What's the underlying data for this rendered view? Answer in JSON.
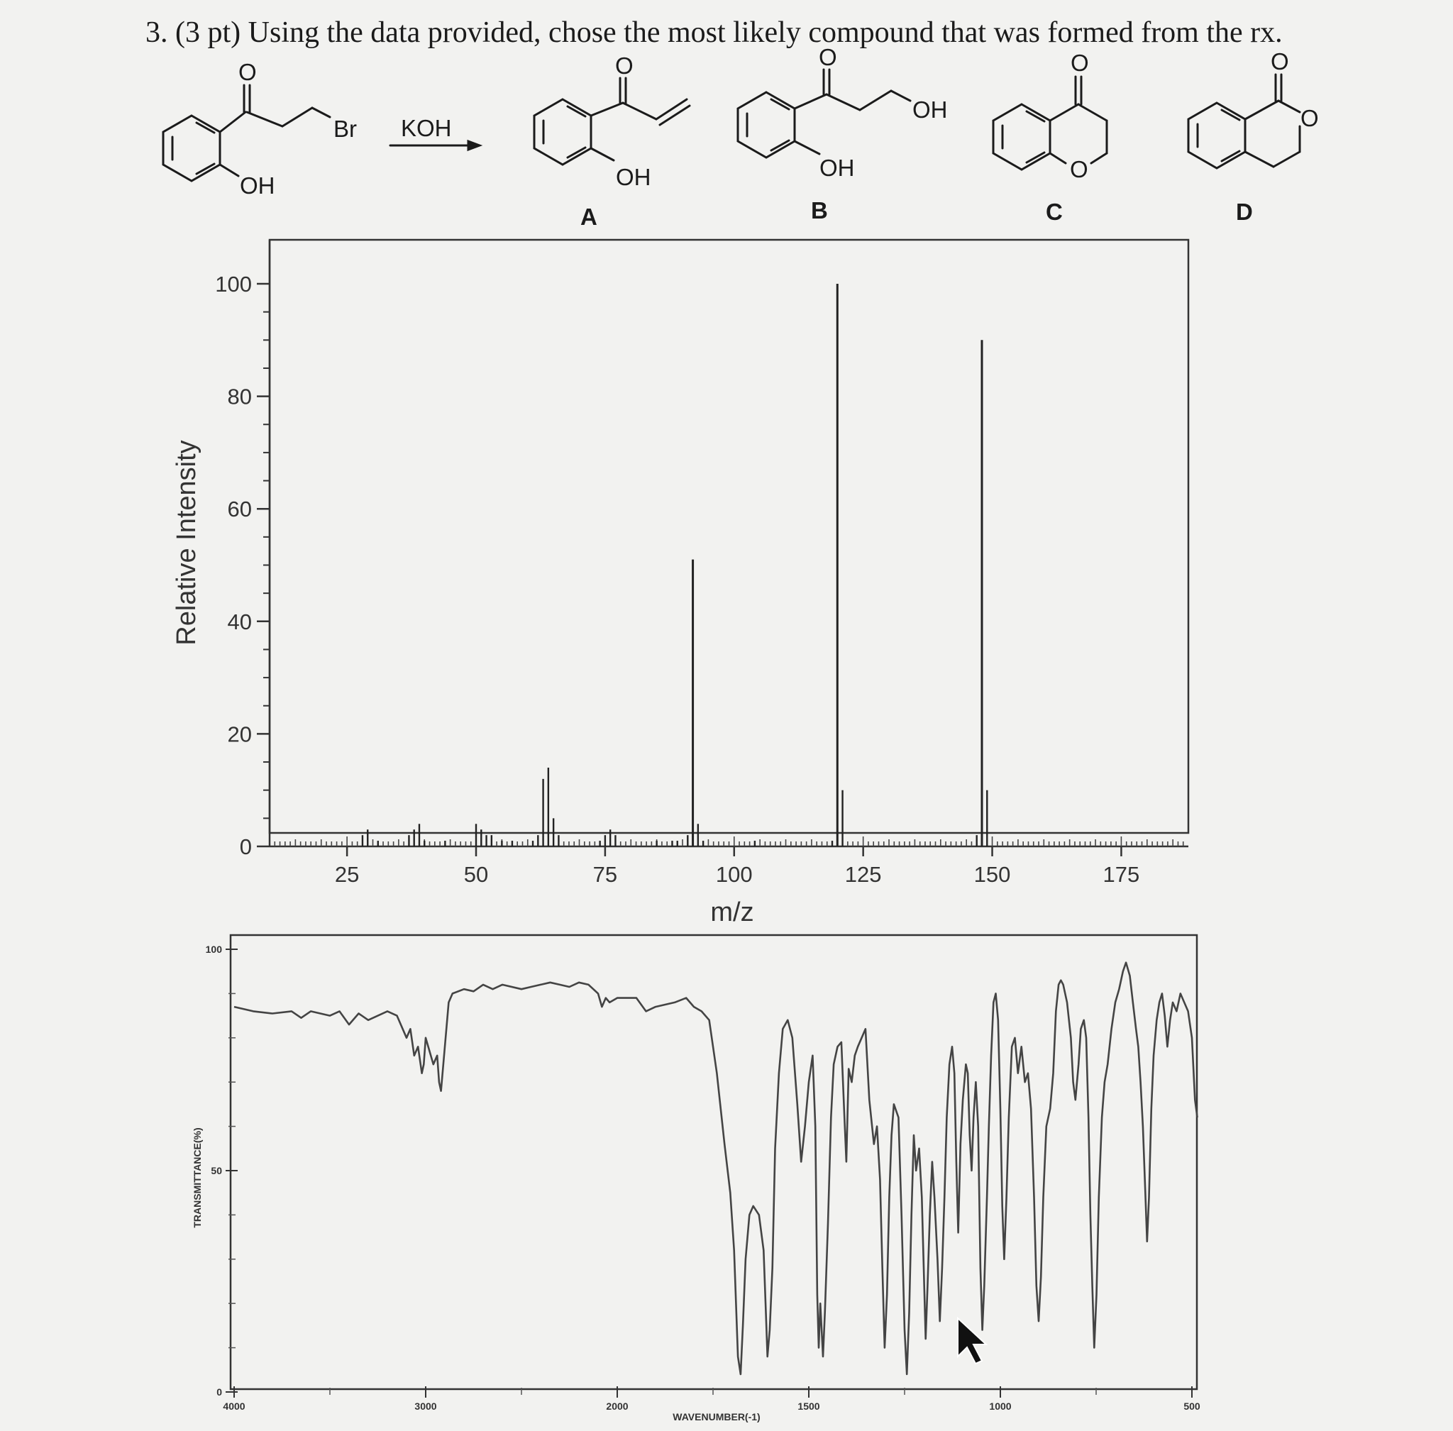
{
  "question": "3. (3 pt) Using the data provided, chose the most likely compound that was formed from the rx.",
  "reaction": {
    "reactant_labels": {
      "carbonyl_o": "O",
      "bromine": "Br",
      "hydroxyl": "OH"
    },
    "reagent": "KOH",
    "choices": [
      {
        "letter": "A",
        "atoms": [
          "O",
          "OH"
        ]
      },
      {
        "letter": "B",
        "atoms": [
          "O",
          "OH",
          "OH"
        ]
      },
      {
        "letter": "C",
        "atoms": [
          "O",
          "O"
        ]
      },
      {
        "letter": "D",
        "atoms": [
          "O",
          "O"
        ]
      }
    ]
  },
  "chart_data": [
    {
      "type": "bar",
      "chart_kind": "mass-spectrum",
      "xlabel": "m/z",
      "ylabel": "Relative Intensity",
      "x_ticks": [
        "25",
        "50",
        "75",
        "100",
        "125",
        "150",
        "175"
      ],
      "y_ticks": [
        "0",
        "20",
        "40",
        "60",
        "80",
        "100"
      ],
      "xlim": [
        10,
        188
      ],
      "ylim": [
        0,
        100
      ],
      "peaks": [
        {
          "mz": 28,
          "intensity": 2
        },
        {
          "mz": 29,
          "intensity": 3
        },
        {
          "mz": 31,
          "intensity": 1
        },
        {
          "mz": 37,
          "intensity": 2
        },
        {
          "mz": 38,
          "intensity": 3
        },
        {
          "mz": 39,
          "intensity": 4
        },
        {
          "mz": 40,
          "intensity": 1
        },
        {
          "mz": 44,
          "intensity": 1
        },
        {
          "mz": 50,
          "intensity": 4
        },
        {
          "mz": 51,
          "intensity": 3
        },
        {
          "mz": 52,
          "intensity": 2
        },
        {
          "mz": 53,
          "intensity": 2
        },
        {
          "mz": 55,
          "intensity": 1
        },
        {
          "mz": 57,
          "intensity": 1
        },
        {
          "mz": 61,
          "intensity": 1
        },
        {
          "mz": 62,
          "intensity": 2
        },
        {
          "mz": 63,
          "intensity": 12
        },
        {
          "mz": 64,
          "intensity": 14
        },
        {
          "mz": 65,
          "intensity": 5
        },
        {
          "mz": 66,
          "intensity": 2
        },
        {
          "mz": 74,
          "intensity": 1
        },
        {
          "mz": 75,
          "intensity": 2
        },
        {
          "mz": 76,
          "intensity": 3
        },
        {
          "mz": 77,
          "intensity": 2
        },
        {
          "mz": 85,
          "intensity": 1
        },
        {
          "mz": 88,
          "intensity": 1
        },
        {
          "mz": 89,
          "intensity": 1
        },
        {
          "mz": 91,
          "intensity": 2
        },
        {
          "mz": 92,
          "intensity": 51
        },
        {
          "mz": 93,
          "intensity": 4
        },
        {
          "mz": 94,
          "intensity": 1
        },
        {
          "mz": 104,
          "intensity": 1
        },
        {
          "mz": 119,
          "intensity": 1
        },
        {
          "mz": 120,
          "intensity": 100
        },
        {
          "mz": 121,
          "intensity": 10
        },
        {
          "mz": 147,
          "intensity": 2
        },
        {
          "mz": 148,
          "intensity": 90
        },
        {
          "mz": 149,
          "intensity": 10
        }
      ]
    },
    {
      "type": "line",
      "chart_kind": "ir-spectrum",
      "ylabel": "TRANSMITTANCE(%)",
      "xlabel": "WAVENUMBER(-1)",
      "x_ticks": [
        "4000",
        "3000",
        "2000",
        "1500",
        "1000",
        "500"
      ],
      "y_ticks": [
        "0",
        "50",
        "100"
      ],
      "ylim": [
        0,
        100
      ],
      "points": [
        [
          4000,
          87
        ],
        [
          3900,
          86
        ],
        [
          3800,
          85.5
        ],
        [
          3700,
          86
        ],
        [
          3650,
          84.5
        ],
        [
          3600,
          86
        ],
        [
          3500,
          85
        ],
        [
          3450,
          86
        ],
        [
          3400,
          83
        ],
        [
          3350,
          85.5
        ],
        [
          3300,
          84
        ],
        [
          3200,
          86
        ],
        [
          3150,
          85
        ],
        [
          3100,
          80
        ],
        [
          3080,
          82
        ],
        [
          3060,
          76
        ],
        [
          3040,
          78
        ],
        [
          3020,
          72
        ],
        [
          3010,
          74
        ],
        [
          3000,
          80
        ],
        [
          2980,
          77
        ],
        [
          2960,
          74
        ],
        [
          2940,
          76
        ],
        [
          2930,
          70
        ],
        [
          2920,
          68
        ],
        [
          2900,
          78
        ],
        [
          2880,
          88
        ],
        [
          2860,
          90
        ],
        [
          2800,
          91
        ],
        [
          2750,
          90.5
        ],
        [
          2700,
          92
        ],
        [
          2650,
          91
        ],
        [
          2600,
          92
        ],
        [
          2500,
          91
        ],
        [
          2450,
          91.5
        ],
        [
          2400,
          92
        ],
        [
          2350,
          92.5
        ],
        [
          2300,
          92
        ],
        [
          2250,
          91.5
        ],
        [
          2200,
          92.5
        ],
        [
          2150,
          92
        ],
        [
          2100,
          90
        ],
        [
          2080,
          87
        ],
        [
          2060,
          89
        ],
        [
          2040,
          88
        ],
        [
          2000,
          89
        ],
        [
          1950,
          89
        ],
        [
          1925,
          86
        ],
        [
          1900,
          87
        ],
        [
          1850,
          88
        ],
        [
          1820,
          89
        ],
        [
          1800,
          87
        ],
        [
          1780,
          86
        ],
        [
          1760,
          84
        ],
        [
          1740,
          72
        ],
        [
          1720,
          56
        ],
        [
          1705,
          45
        ],
        [
          1695,
          32
        ],
        [
          1690,
          20
        ],
        [
          1685,
          8
        ],
        [
          1678,
          4
        ],
        [
          1672,
          15
        ],
        [
          1665,
          30
        ],
        [
          1655,
          40
        ],
        [
          1645,
          42
        ],
        [
          1630,
          40
        ],
        [
          1618,
          32
        ],
        [
          1612,
          18
        ],
        [
          1608,
          8
        ],
        [
          1602,
          14
        ],
        [
          1595,
          28
        ],
        [
          1588,
          55
        ],
        [
          1578,
          72
        ],
        [
          1568,
          82
        ],
        [
          1555,
          84
        ],
        [
          1543,
          80
        ],
        [
          1530,
          65
        ],
        [
          1520,
          52
        ],
        [
          1510,
          60
        ],
        [
          1500,
          70
        ],
        [
          1490,
          76
        ],
        [
          1483,
          60
        ],
        [
          1478,
          22
        ],
        [
          1474,
          10
        ],
        [
          1470,
          20
        ],
        [
          1463,
          8
        ],
        [
          1458,
          18
        ],
        [
          1450,
          38
        ],
        [
          1442,
          62
        ],
        [
          1435,
          74
        ],
        [
          1425,
          78
        ],
        [
          1415,
          79
        ],
        [
          1408,
          64
        ],
        [
          1402,
          52
        ],
        [
          1396,
          73
        ],
        [
          1388,
          70
        ],
        [
          1380,
          76
        ],
        [
          1372,
          78
        ],
        [
          1362,
          80
        ],
        [
          1352,
          82
        ],
        [
          1342,
          66
        ],
        [
          1330,
          56
        ],
        [
          1322,
          60
        ],
        [
          1314,
          48
        ],
        [
          1308,
          28
        ],
        [
          1302,
          10
        ],
        [
          1296,
          22
        ],
        [
          1290,
          44
        ],
        [
          1284,
          58
        ],
        [
          1278,
          65
        ],
        [
          1266,
          62
        ],
        [
          1258,
          40
        ],
        [
          1250,
          14
        ],
        [
          1244,
          4
        ],
        [
          1238,
          18
        ],
        [
          1232,
          40
        ],
        [
          1226,
          58
        ],
        [
          1220,
          50
        ],
        [
          1212,
          55
        ],
        [
          1205,
          44
        ],
        [
          1200,
          28
        ],
        [
          1195,
          12
        ],
        [
          1190,
          24
        ],
        [
          1184,
          40
        ],
        [
          1178,
          52
        ],
        [
          1172,
          44
        ],
        [
          1164,
          30
        ],
        [
          1158,
          16
        ],
        [
          1152,
          28
        ],
        [
          1146,
          44
        ],
        [
          1140,
          62
        ],
        [
          1133,
          74
        ],
        [
          1126,
          78
        ],
        [
          1120,
          72
        ],
        [
          1115,
          52
        ],
        [
          1110,
          36
        ],
        [
          1104,
          56
        ],
        [
          1098,
          66
        ],
        [
          1090,
          74
        ],
        [
          1085,
          72
        ],
        [
          1080,
          58
        ],
        [
          1075,
          50
        ],
        [
          1070,
          62
        ],
        [
          1064,
          70
        ],
        [
          1058,
          60
        ],
        [
          1052,
          28
        ],
        [
          1047,
          14
        ],
        [
          1042,
          24
        ],
        [
          1035,
          44
        ],
        [
          1030,
          60
        ],
        [
          1024,
          76
        ],
        [
          1018,
          88
        ],
        [
          1012,
          90
        ],
        [
          1006,
          84
        ],
        [
          1000,
          64
        ],
        [
          995,
          42
        ],
        [
          990,
          30
        ],
        [
          984,
          44
        ],
        [
          978,
          62
        ],
        [
          970,
          78
        ],
        [
          962,
          80
        ],
        [
          954,
          72
        ],
        [
          945,
          78
        ],
        [
          936,
          70
        ],
        [
          928,
          72
        ],
        [
          920,
          64
        ],
        [
          912,
          44
        ],
        [
          906,
          24
        ],
        [
          900,
          16
        ],
        [
          894,
          26
        ],
        [
          888,
          44
        ],
        [
          880,
          60
        ],
        [
          870,
          64
        ],
        [
          862,
          72
        ],
        [
          855,
          86
        ],
        [
          848,
          92
        ],
        [
          842,
          93
        ],
        [
          836,
          92
        ],
        [
          826,
          88
        ],
        [
          816,
          80
        ],
        [
          810,
          70
        ],
        [
          804,
          66
        ],
        [
          796,
          74
        ],
        [
          790,
          82
        ],
        [
          782,
          84
        ],
        [
          776,
          80
        ],
        [
          770,
          62
        ],
        [
          765,
          40
        ],
        [
          760,
          24
        ],
        [
          755,
          10
        ],
        [
          749,
          22
        ],
        [
          743,
          44
        ],
        [
          735,
          62
        ],
        [
          728,
          70
        ],
        [
          720,
          74
        ],
        [
          710,
          82
        ],
        [
          700,
          88
        ],
        [
          690,
          91
        ],
        [
          680,
          95
        ],
        [
          672,
          97
        ],
        [
          662,
          94
        ],
        [
          654,
          88
        ],
        [
          646,
          82
        ],
        [
          640,
          78
        ],
        [
          634,
          70
        ],
        [
          628,
          60
        ],
        [
          622,
          46
        ],
        [
          617,
          34
        ],
        [
          612,
          44
        ],
        [
          606,
          64
        ],
        [
          600,
          76
        ],
        [
          592,
          84
        ],
        [
          585,
          88
        ],
        [
          578,
          90
        ],
        [
          571,
          85
        ],
        [
          564,
          78
        ],
        [
          557,
          84
        ],
        [
          550,
          88
        ],
        [
          540,
          86
        ],
        [
          530,
          90
        ],
        [
          520,
          88
        ],
        [
          510,
          86
        ],
        [
          500,
          80
        ],
        [
          492,
          66
        ],
        [
          486,
          62
        ]
      ]
    }
  ]
}
